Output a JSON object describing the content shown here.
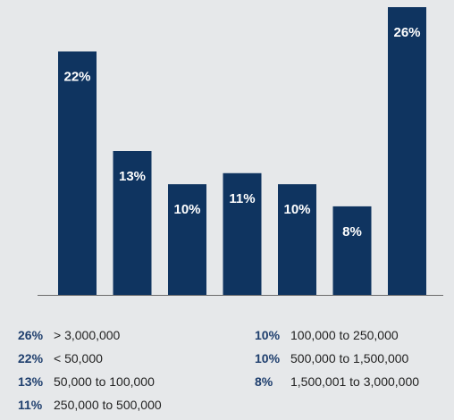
{
  "colors": {
    "bar": "#0f3460",
    "axis": "#6b6b6b",
    "background": "#e6e8ea",
    "legend_pct": "#1f3f6e"
  },
  "chart_data": {
    "type": "bar",
    "categories": [
      "< 50,000",
      "50,000 to 100,000",
      "100,000 to 250,000",
      "250,000 to 500,000",
      "500,000 to 1,500,000",
      "1,500,001 to 3,000,000",
      "> 3,000,000"
    ],
    "values": [
      22,
      13,
      10,
      11,
      10,
      8,
      26
    ],
    "data_labels": [
      "22%",
      "13%",
      "10%",
      "11%",
      "10%",
      "8%",
      "26%"
    ],
    "title": "",
    "xlabel": "",
    "ylabel": "",
    "ylim": [
      0,
      26
    ]
  },
  "legend": {
    "left": [
      {
        "pct": "26%",
        "label": "> 3,000,000"
      },
      {
        "pct": "22%",
        "label": "< 50,000"
      },
      {
        "pct": "13%",
        "label": "50,000 to 100,000"
      },
      {
        "pct": "11%",
        "label": "250,000 to 500,000"
      }
    ],
    "right": [
      {
        "pct": "10%",
        "label": "100,000 to 250,000"
      },
      {
        "pct": "10%",
        "label": "500,000 to 1,500,000"
      },
      {
        "pct": "8%",
        "label": "1,500,001 to 3,000,000"
      }
    ]
  }
}
